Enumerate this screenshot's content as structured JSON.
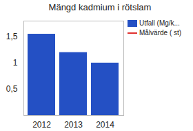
{
  "chart_data": {
    "type": "bar",
    "title": "Mängd kadmium i rötslam",
    "categories": [
      "2012",
      "2013",
      "2014"
    ],
    "series": [
      {
        "name": "Utfall (Mg/k...",
        "color": "#2450c4",
        "type": "bar",
        "values": [
          1.55,
          1.2,
          1.0
        ]
      },
      {
        "name": "Målvärde ( st)",
        "color": "#e0312f",
        "type": "line",
        "values": [
          null,
          null,
          null
        ]
      }
    ],
    "ylim": [
      0,
      1.8
    ],
    "yticks": [
      {
        "value": 0.5,
        "label": "0,5"
      },
      1,
      {
        "value": 1.5,
        "label": "1,5"
      }
    ],
    "grid": false,
    "legend": "right"
  }
}
